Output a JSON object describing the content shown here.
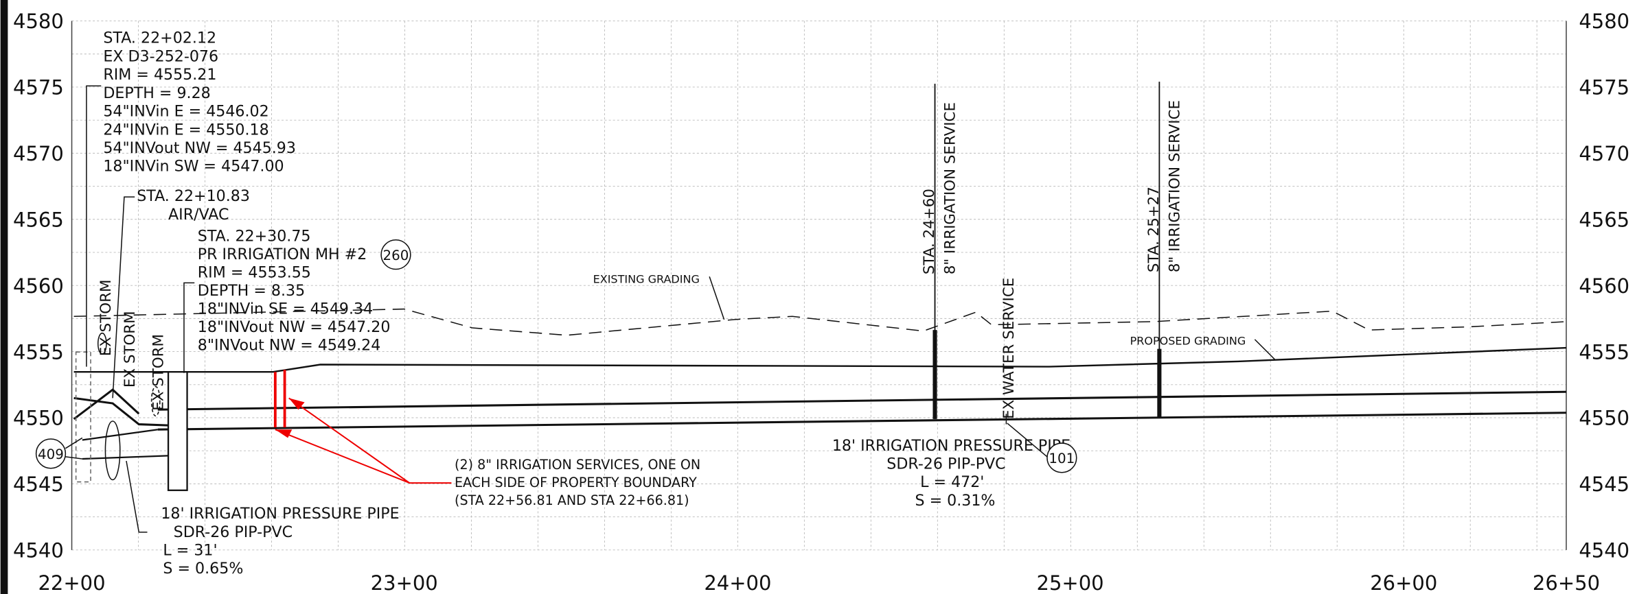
{
  "y_axis_labels": [
    "4580",
    "4575",
    "4570",
    "4565",
    "4560",
    "4555",
    "4550",
    "4545",
    "4540"
  ],
  "x_axis_labels": [
    "22+00",
    "23+00",
    "24+00",
    "25+00",
    "26+00",
    "26+50"
  ],
  "annotations": {
    "mh1": [
      "STA. 22+02.12",
      "EX D3-252-076",
      "RIM = 4555.21",
      "DEPTH = 9.28",
      "54\"INVin E = 4546.02",
      "24\"INVin E = 4550.18",
      "54\"INVout NW = 4545.93",
      "18\"INVin SW = 4547.00"
    ],
    "airvac": [
      "STA. 22+10.83",
      "AIR/VAC"
    ],
    "mh2": [
      "STA. 22+30.75",
      "PR IRRIGATION MH #2",
      "RIM = 4553.55",
      "DEPTH = 8.35",
      "18\"INVin SE = 4549.34",
      "18\"INVout NW = 4547.20",
      "8\"INVout NW = 4549.24"
    ],
    "mh2_tag": [
      "260"
    ],
    "existing_grading": [
      "EXISTING GRADING"
    ],
    "proposed_grading": [
      "PROPOSED GRADING"
    ],
    "service_2460": [
      "STA. 24+60",
      "8\" IRRIGATION SERVICE"
    ],
    "service_2527": [
      "STA. 25+27",
      "8\" IRRIGATION SERVICE"
    ],
    "ex_water": [
      "EX WATER SERVICE"
    ],
    "ex_storm": [
      "EX STORM",
      "EX STORM",
      "EX STORM"
    ],
    "pipe_main": [
      "18' IRRIGATION PRESSURE PIPE",
      "SDR-26 PIP-PVC",
      "L = 472'",
      "S = 0.31%"
    ],
    "pipe_main_tag": [
      "101"
    ],
    "pipe_short": [
      "18' IRRIGATION PRESSURE PIPE",
      "SDR-26 PIP-PVC",
      "L = 31'",
      "S = 0.65%"
    ],
    "pipe_short_tag": [
      "409"
    ],
    "red_note": [
      "(2) 8\" IRRIGATION SERVICES, ONE ON",
      "EACH SIDE OF PROPERTY BOUNDARY",
      "(STA 22+56.81 AND STA 22+66.81)"
    ]
  }
}
